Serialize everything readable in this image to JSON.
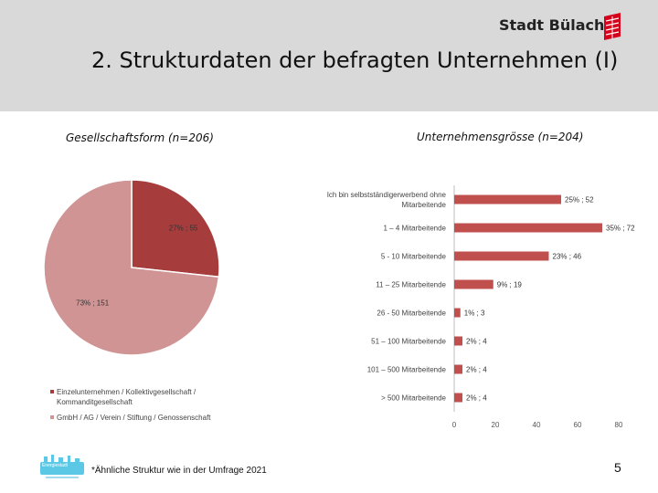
{
  "header": {
    "brand": "Stadt Bülach",
    "title": "2. Strukturdaten der befragten Unternehmen (I)"
  },
  "colors": {
    "header_bg": "#d9d9d9",
    "slice_dark": "#a63c3c",
    "slice_light": "#d09494",
    "bar": "#c0504d",
    "footer_logo": "#5bc8e6"
  },
  "chart_data": [
    {
      "type": "pie",
      "title": "Gesellschaftsform (n=206)",
      "categories": [
        "Einzelunternehmen / Kollektivgesellschaft / Kommanditgesellschaft",
        "GmbH / AG / Verein / Stiftung / Genossenschaft"
      ],
      "values": [
        55,
        151
      ],
      "percents": [
        27,
        73
      ],
      "data_labels": [
        "27% ; 55",
        "73% ; 151"
      ],
      "legend": "bottom"
    },
    {
      "type": "bar",
      "orientation": "horizontal",
      "title": "Unternehmensgrösse (n=204)",
      "categories": [
        "Ich bin selbstständigerwerbend ohne Mitarbeitende",
        "1 – 4 Mitarbeitende",
        "5 - 10 Mitarbeitende",
        "11 – 25 Mitarbeitende",
        "26 - 50 Mitarbeitende",
        "51 – 100 Mitarbeitende",
        "101 – 500 Mitarbeitende",
        "> 500 Mitarbeitende"
      ],
      "category_lines": [
        [
          "Ich bin selbstständigerwerbend ohne",
          "Mitarbeitende"
        ],
        [
          "1 – 4 Mitarbeitende"
        ],
        [
          "5 - 10 Mitarbeitende"
        ],
        [
          "11 – 25 Mitarbeitende"
        ],
        [
          "26 - 50 Mitarbeitende"
        ],
        [
          "51 – 100 Mitarbeitende"
        ],
        [
          "101 – 500 Mitarbeitende"
        ],
        [
          "> 500 Mitarbeitende"
        ]
      ],
      "values": [
        52,
        72,
        46,
        19,
        3,
        4,
        4,
        4
      ],
      "data_labels": [
        "25% ; 52",
        "35% ; 72",
        "23% ; 46",
        "9% ; 19",
        "1% ; 3",
        "2% ; 4",
        "2% ; 4",
        "2% ; 4"
      ],
      "xlim": [
        0,
        80
      ],
      "xticks": [
        "0",
        "20",
        "40",
        "60",
        "80"
      ],
      "grid": false
    }
  ],
  "footer": {
    "logo_text": "Energiestadt",
    "note": "*Ähnliche Struktur wie in der Umfrage 2021",
    "page": "5"
  }
}
